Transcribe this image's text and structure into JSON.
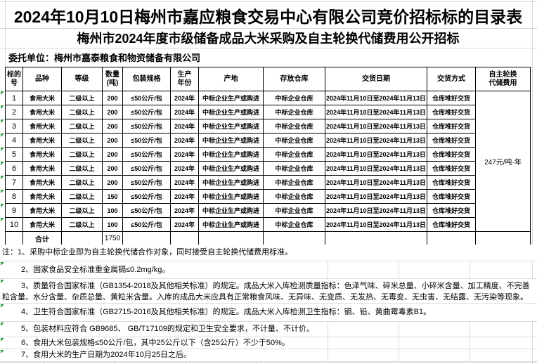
{
  "titles": {
    "main": "2024年10月10日梅州市嘉应粮食交易中心有限公司竞价招标标的目录表",
    "sub": "梅州市2024年度市级储备成品大米采购及自主轮换代储费用公开招标",
    "entrust": "委托单位：梅州市嘉泰粮食和物资储备有限公司"
  },
  "table": {
    "headers": [
      "标的\n号",
      "品种",
      "等级",
      "数量\n(吨)",
      "包装规格",
      "生产\n年份",
      "产地",
      "存放仓库",
      "交货日期",
      "交货方式",
      "自主轮换\n代储费用"
    ],
    "rows": [
      {
        "no": "1",
        "variety": "食用大米",
        "grade": "二级以上",
        "qty": "200",
        "pack": "≤50公斤/包",
        "year": "2024年",
        "origin": "中标企业生产或购进",
        "warehouse": "中标企业仓库",
        "delivery_date": "2024年11月10日至2024年11月13日",
        "delivery_method": "仓库堆好交货"
      },
      {
        "no": "2",
        "variety": "食用大米",
        "grade": "二级以上",
        "qty": "200",
        "pack": "≤50公斤/包",
        "year": "2024年",
        "origin": "中标企业生产或购进",
        "warehouse": "中标企业仓库",
        "delivery_date": "2024年11月10日至2024年11月13日",
        "delivery_method": "仓库堆好交货"
      },
      {
        "no": "3",
        "variety": "食用大米",
        "grade": "二级以上",
        "qty": "200",
        "pack": "≤50公斤/包",
        "year": "2024年",
        "origin": "中标企业生产或购进",
        "warehouse": "中标企业仓库",
        "delivery_date": "2024年11月10日至2024年11月13日",
        "delivery_method": "仓库堆好交货"
      },
      {
        "no": "4",
        "variety": "食用大米",
        "grade": "二级以上",
        "qty": "200",
        "pack": "≤50公斤/包",
        "year": "2024年",
        "origin": "中标企业生产或购进",
        "warehouse": "中标企业仓库",
        "delivery_date": "2024年11月10日至2024年11月13日",
        "delivery_method": "仓库堆好交货"
      },
      {
        "no": "5",
        "variety": "食用大米",
        "grade": "二级以上",
        "qty": "200",
        "pack": "≤50公斤/包",
        "year": "2024年",
        "origin": "中标企业生产或购进",
        "warehouse": "中标企业仓库",
        "delivery_date": "2024年11月10日至2024年11月13日",
        "delivery_method": "仓库堆好交货"
      },
      {
        "no": "6",
        "variety": "食用大米",
        "grade": "二级以上",
        "qty": "200",
        "pack": "≤50公斤/包",
        "year": "2024年",
        "origin": "中标企业生产或购进",
        "warehouse": "中标企业仓库",
        "delivery_date": "2024年11月10日至2024年11月13日",
        "delivery_method": "仓库堆好交货"
      },
      {
        "no": "7",
        "variety": "食用大米",
        "grade": "二级以上",
        "qty": "200",
        "pack": "≤50公斤/包",
        "year": "2024年",
        "origin": "中标企业生产或购进",
        "warehouse": "中标企业仓库",
        "delivery_date": "2024年11月10日至2024年11月13日",
        "delivery_method": "仓库堆好交货"
      },
      {
        "no": "8",
        "variety": "食用大米",
        "grade": "二级以上",
        "qty": "150",
        "pack": "≤50公斤/包",
        "year": "2024年",
        "origin": "中标企业生产或购进",
        "warehouse": "中标企业仓库",
        "delivery_date": "2024年11月10日至2024年11月13日",
        "delivery_method": "仓库堆好交货"
      },
      {
        "no": "9",
        "variety": "食用大米",
        "grade": "二级以上",
        "qty": "100",
        "pack": "≤50公斤/包",
        "year": "2024年",
        "origin": "中标企业生产或购进",
        "warehouse": "中标企业仓库",
        "delivery_date": "2024年11月10日至2024年11月13日",
        "delivery_method": "仓库堆好交货"
      },
      {
        "no": "10",
        "variety": "食用大米",
        "grade": "二级以上",
        "qty": "100",
        "pack": "≤50公斤/包",
        "year": "2024年",
        "origin": "中标企业生产或购进",
        "warehouse": "中标企业仓库",
        "delivery_date": "2024年11月10日至2024年11月13日",
        "delivery_method": "仓库堆好交货"
      }
    ],
    "rotation_fee": "247元/吨·年",
    "total_label": "合计",
    "total_qty": "1750"
  },
  "notes": [
    "注：1、采购中标企业即为自主轮换代储合作对象，同时接受自主轮换代储费用标准。",
    "2、国家食品安全标准重金属镉≤0.2mg/kg。",
    "3、质量符合国家标准（GB1354-2018及其他相关标准）的规定。成品大米入库检测质量指标：色泽气味、碎米总量、小碎米含量、加工精度、不完善粒含量、水分含量、杂质总量、黄粒米含量。入库的成品大米应具有正常粮食风味、无异味、无变质、无发热、无霉变、无虫害、无结露、无污染等现象。",
    "4、卫生符合国家标准（GB2715-2016及其他相关标准）的规定。成品大米入库检测卫生指标：镉、铅、黄曲霉毒素B1。",
    "5、包装材料应符合 GB9685、 GB/T17109的规定和卫生安全要求，不计量、不计价。",
    "6、食用大米包装规格≤50公斤/包，其中25公斤以下（含25公斤）不少于50%。",
    "7、食用大米的生产日期为2024年10月25日之后。"
  ],
  "colors": {
    "background": "#ffffff",
    "text": "#000000",
    "table_border": "#000000",
    "gridline": "#d9d9d9",
    "cell_flag_green": "#2f9e44"
  },
  "icons": {
    "cell_flag": "excel-green-corner-triangle"
  }
}
